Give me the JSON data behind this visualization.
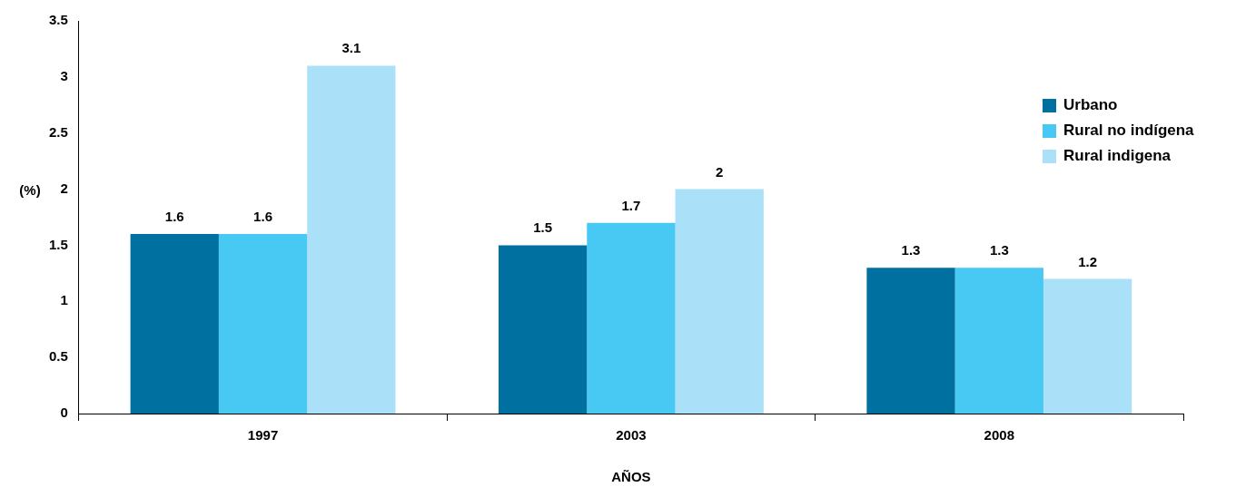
{
  "chart_data": {
    "type": "bar",
    "xlabel": "AÑOS",
    "ylabel": "(%)",
    "categories": [
      "1997",
      "2003",
      "2008"
    ],
    "series": [
      {
        "name": "Urbano",
        "color": "#0070a0",
        "values": [
          1.6,
          1.5,
          1.3
        ]
      },
      {
        "name": "Rural no indígena",
        "color": "#47c9f4",
        "values": [
          1.6,
          1.7,
          1.3
        ]
      },
      {
        "name": "Rural indigena",
        "color": "#abe1f8",
        "values": [
          3.1,
          2,
          1.2
        ]
      }
    ],
    "ylim": [
      0,
      3.5
    ],
    "yticks": [
      0,
      0.5,
      1,
      1.5,
      2,
      2.5,
      3,
      3.5
    ],
    "grid": false,
    "legend": "top right",
    "data_labels": true
  }
}
